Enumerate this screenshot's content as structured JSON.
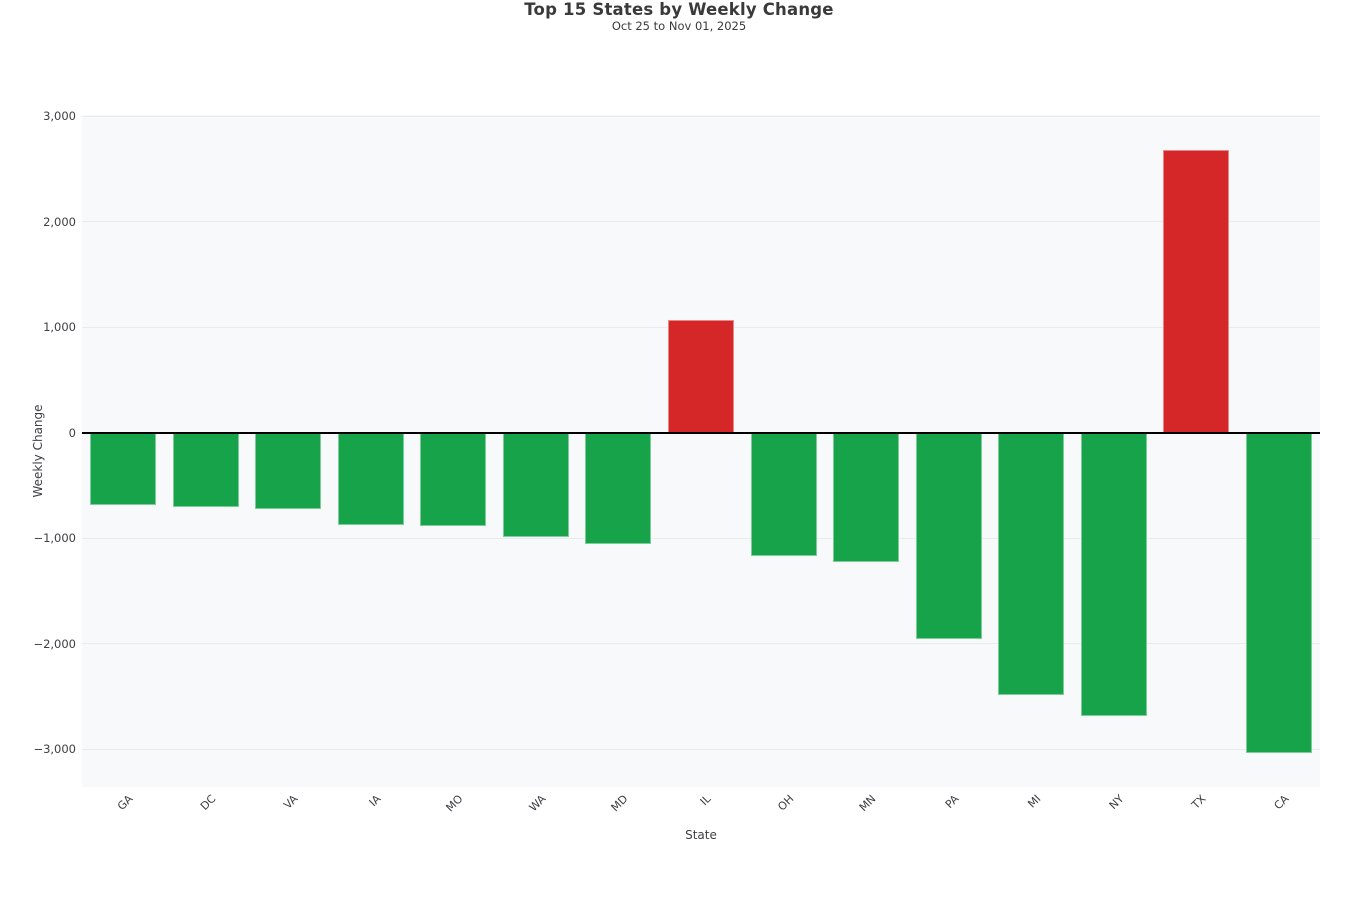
{
  "header": {
    "title": "Top 15 States by Weekly Change",
    "subtitle": "Oct 25 to Nov 01, 2025"
  },
  "chart_data": {
    "type": "bar",
    "title": "Top 15 States by Weekly Change",
    "subtitle": "Oct 25 to Nov 01, 2025",
    "xlabel": "State",
    "ylabel": "Weekly Change",
    "categories": [
      "GA",
      "DC",
      "VA",
      "IA",
      "MO",
      "WA",
      "MD",
      "IL",
      "OH",
      "MN",
      "PA",
      "MI",
      "NY",
      "TX",
      "CA"
    ],
    "values": [
      -690,
      -710,
      -725,
      -875,
      -885,
      -990,
      -1060,
      1065,
      -1175,
      -1225,
      -1955,
      -2485,
      -2685,
      2680,
      -3040
    ],
    "ylim": [
      -3360,
      3010
    ],
    "yticks": [
      3000,
      2000,
      1000,
      0,
      -1000,
      -2000,
      -3000
    ],
    "ytick_labels": [
      "3,000",
      "2,000",
      "1,000",
      "0",
      "−1,000",
      "−2,000",
      "−3,000"
    ],
    "grid": true,
    "legend": "none",
    "colors": {
      "positive_bar": "#d62728",
      "negative_bar": "#16a34a",
      "plot_background": "#f8f9fa",
      "gridline": "#e9ebee",
      "zero_line": "#000000",
      "tick_text": "#3f4045",
      "title_text": "#3a3a3a"
    }
  }
}
